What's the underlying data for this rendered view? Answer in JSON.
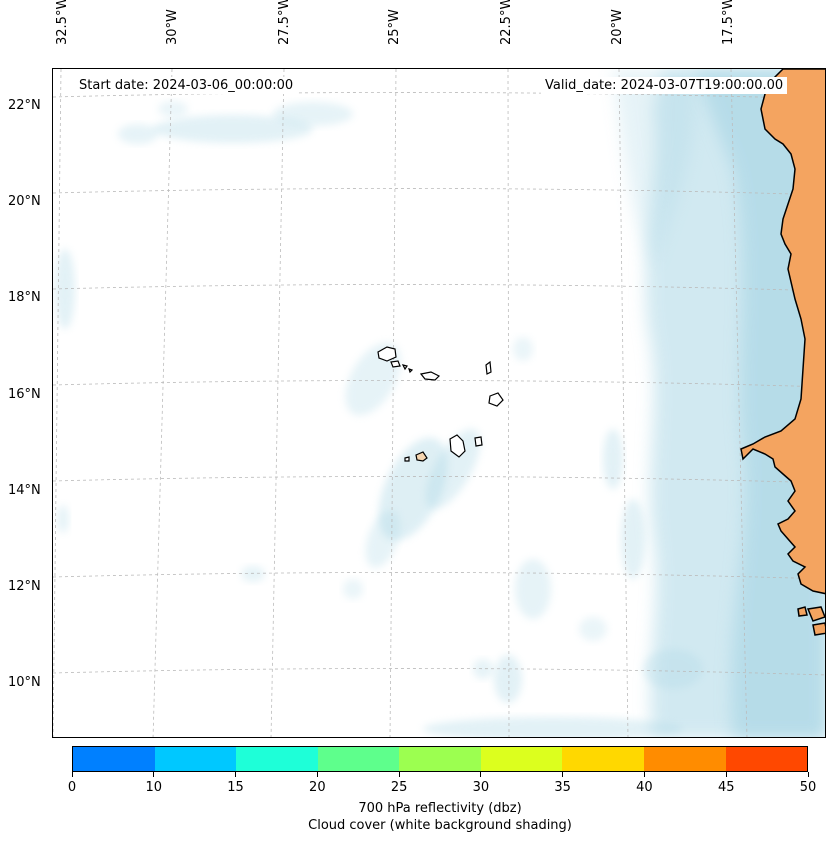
{
  "map": {
    "lon_ticks": [
      "32.5°W",
      "30°W",
      "27.5°W",
      "25°W",
      "22.5°W",
      "20°W",
      "17.5°W"
    ],
    "lat_ticks": [
      "22°N",
      "20°N",
      "18°N",
      "16°N",
      "14°N",
      "12°N",
      "10°N"
    ],
    "start_date": "Start date: 2024-03-06_00:00:00",
    "valid_date": "Valid_date: 2024-03-07T19:00:00.00",
    "land_color": "#f4a460",
    "cloud_color": "#add8e6"
  },
  "colorbar": {
    "ticks": [
      "0",
      "10",
      "15",
      "20",
      "25",
      "30",
      "35",
      "40",
      "45",
      "50"
    ],
    "colors": [
      "#0080ff",
      "#00c8ff",
      "#1effd8",
      "#5eff8c",
      "#9cff50",
      "#dcff1e",
      "#ffd800",
      "#ff8c00",
      "#ff4800"
    ],
    "label_line1": "700 hPa reflectivity (dbz)",
    "label_line2": "Cloud cover (white background shading)"
  }
}
